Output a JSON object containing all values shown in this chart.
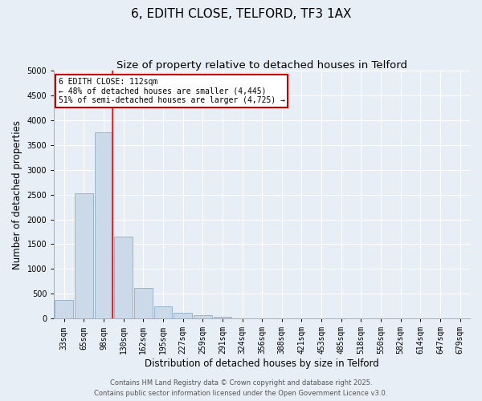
{
  "title": "6, EDITH CLOSE, TELFORD, TF3 1AX",
  "subtitle": "Size of property relative to detached houses in Telford",
  "xlabel": "Distribution of detached houses by size in Telford",
  "ylabel": "Number of detached properties",
  "bar_labels": [
    "33sqm",
    "65sqm",
    "98sqm",
    "130sqm",
    "162sqm",
    "195sqm",
    "227sqm",
    "259sqm",
    "291sqm",
    "324sqm",
    "356sqm",
    "388sqm",
    "421sqm",
    "453sqm",
    "485sqm",
    "518sqm",
    "550sqm",
    "582sqm",
    "614sqm",
    "647sqm",
    "679sqm"
  ],
  "bar_values": [
    380,
    2530,
    3750,
    1650,
    610,
    240,
    110,
    60,
    40,
    0,
    0,
    0,
    0,
    0,
    0,
    0,
    0,
    0,
    0,
    0,
    0
  ],
  "bar_color": "#ccd9e8",
  "bar_edge_color": "#9ab4cc",
  "ylim": [
    0,
    5000
  ],
  "yticks": [
    0,
    500,
    1000,
    1500,
    2000,
    2500,
    3000,
    3500,
    4000,
    4500,
    5000
  ],
  "annotation_text": "6 EDITH CLOSE: 112sqm\n← 48% of detached houses are smaller (4,445)\n51% of semi-detached houses are larger (4,725) →",
  "annotation_box_color": "#ffffff",
  "annotation_box_edge": "#cc0000",
  "footer_line1": "Contains HM Land Registry data © Crown copyright and database right 2025.",
  "footer_line2": "Contains public sector information licensed under the Open Government Licence v3.0.",
  "background_color": "#e8eef5",
  "plot_background": "#e8eef5",
  "grid_color": "#ffffff",
  "title_fontsize": 11,
  "subtitle_fontsize": 9.5,
  "footer_fontsize": 6,
  "tick_fontsize": 7,
  "ylabel_fontsize": 8.5,
  "xlabel_fontsize": 8.5
}
